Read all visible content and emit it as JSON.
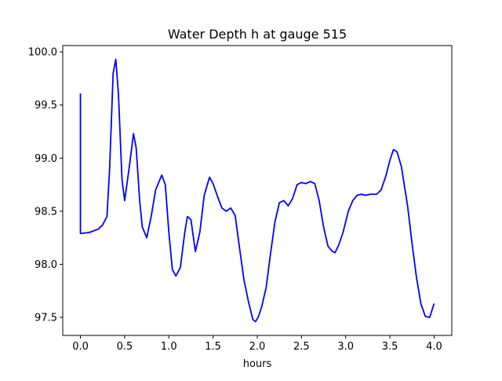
{
  "chart_data": {
    "type": "line",
    "title": "Water Depth h at gauge 515",
    "xlabel": "hours",
    "ylabel": "",
    "xlim": [
      -0.2,
      4.2
    ],
    "ylim": [
      97.33,
      100.06
    ],
    "xticks": [
      0.0,
      0.5,
      1.0,
      1.5,
      2.0,
      2.5,
      3.0,
      3.5,
      4.0
    ],
    "xtick_labels": [
      "0.0",
      "0.5",
      "1.0",
      "1.5",
      "2.0",
      "2.5",
      "3.0",
      "3.5",
      "4.0"
    ],
    "yticks": [
      97.5,
      98.0,
      98.5,
      99.0,
      99.5,
      100.0
    ],
    "ytick_labels": [
      "97.5",
      "98.0",
      "98.5",
      "99.0",
      "99.5",
      "100.0"
    ],
    "grid": false,
    "legend": "none",
    "series": [
      {
        "color": "#0000ff",
        "x": [
          0.0,
          0.0,
          0.1,
          0.2,
          0.25,
          0.3,
          0.33,
          0.37,
          0.4,
          0.43,
          0.47,
          0.5,
          0.55,
          0.6,
          0.63,
          0.67,
          0.7,
          0.75,
          0.8,
          0.85,
          0.92,
          0.96,
          1.0,
          1.04,
          1.08,
          1.13,
          1.18,
          1.21,
          1.25,
          1.3,
          1.35,
          1.4,
          1.46,
          1.5,
          1.55,
          1.6,
          1.65,
          1.7,
          1.75,
          1.8,
          1.85,
          1.9,
          1.95,
          1.98,
          2.01,
          2.05,
          2.1,
          2.15,
          2.2,
          2.25,
          2.3,
          2.35,
          2.4,
          2.45,
          2.5,
          2.55,
          2.6,
          2.65,
          2.7,
          2.75,
          2.8,
          2.85,
          2.88,
          2.92,
          2.97,
          3.03,
          3.08,
          3.13,
          3.18,
          3.22,
          3.28,
          3.35,
          3.4,
          3.45,
          3.5,
          3.54,
          3.58,
          3.63,
          3.7,
          3.75,
          3.8,
          3.85,
          3.9,
          3.95,
          4.0
        ],
        "y": [
          99.61,
          98.29,
          98.3,
          98.33,
          98.37,
          98.45,
          98.9,
          99.8,
          99.93,
          99.6,
          98.8,
          98.6,
          98.9,
          99.23,
          99.1,
          98.6,
          98.35,
          98.25,
          98.45,
          98.7,
          98.84,
          98.75,
          98.3,
          97.95,
          97.89,
          97.97,
          98.3,
          98.45,
          98.42,
          98.12,
          98.3,
          98.65,
          98.82,
          98.76,
          98.64,
          98.53,
          98.5,
          98.53,
          98.46,
          98.15,
          97.85,
          97.65,
          97.48,
          97.46,
          97.5,
          97.6,
          97.78,
          98.1,
          98.4,
          98.58,
          98.6,
          98.55,
          98.62,
          98.75,
          98.77,
          98.76,
          98.78,
          98.76,
          98.6,
          98.35,
          98.17,
          98.12,
          98.11,
          98.18,
          98.3,
          98.5,
          98.6,
          98.65,
          98.66,
          98.65,
          98.66,
          98.66,
          98.7,
          98.82,
          98.98,
          99.08,
          99.06,
          98.92,
          98.55,
          98.2,
          97.88,
          97.63,
          97.51,
          97.5,
          97.63
        ]
      }
    ]
  }
}
